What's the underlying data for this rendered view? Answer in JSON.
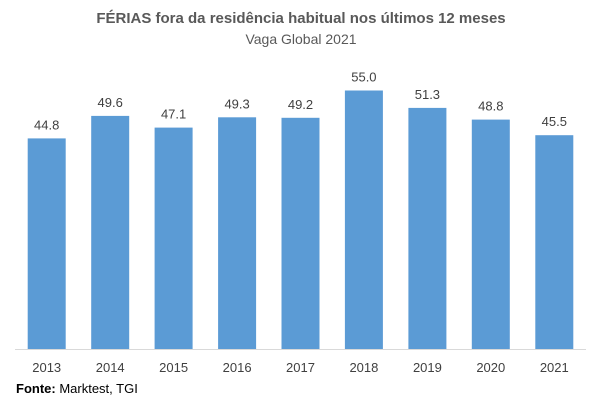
{
  "chart_data": {
    "type": "bar",
    "title": "FÉRIAS fora da residência habitual nos últimos 12 meses",
    "subtitle": "Vaga Global 2021",
    "categories": [
      "2013",
      "2014",
      "2015",
      "2016",
      "2017",
      "2018",
      "2019",
      "2020",
      "2021"
    ],
    "values": [
      44.8,
      49.6,
      47.1,
      49.3,
      49.2,
      55.0,
      51.3,
      48.8,
      45.5
    ],
    "data_labels": [
      "44.8",
      "49.6",
      "47.1",
      "49.3",
      "49.2",
      "55.0",
      "51.3",
      "48.8",
      "45.5"
    ],
    "ylim": [
      0,
      60
    ],
    "xlabel": "",
    "ylabel": "",
    "grid": false,
    "bar_color": "#5B9BD5"
  },
  "source": {
    "label": "Fonte:",
    "text": " Marktest, TGI"
  }
}
